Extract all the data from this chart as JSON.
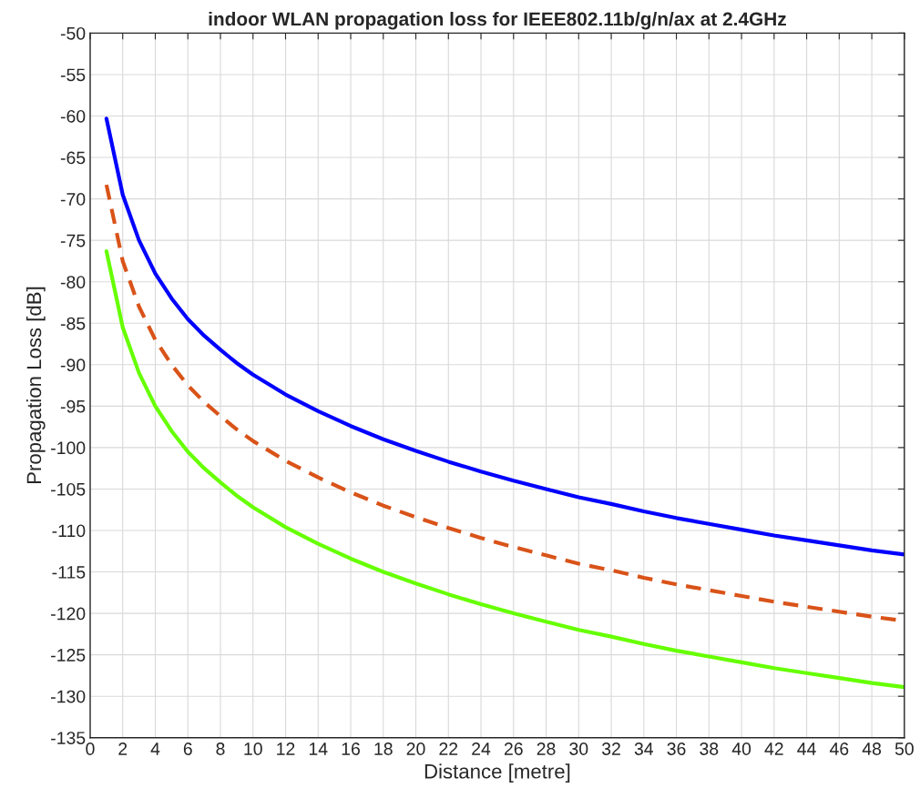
{
  "chart_data": {
    "type": "line",
    "title": "indoor WLAN propagation loss for IEEE802.11b/g/n/ax at 2.4GHz",
    "xlabel": "Distance [metre]",
    "ylabel": "Propagation Loss [dB]",
    "x": [
      1,
      2,
      3,
      4,
      5,
      6,
      7,
      8,
      9,
      10,
      12,
      14,
      16,
      18,
      20,
      22,
      24,
      26,
      28,
      30,
      32,
      34,
      36,
      38,
      40,
      42,
      44,
      46,
      48,
      50
    ],
    "series": [
      {
        "color": "#0000ff",
        "line_style": "solid",
        "values": [
          -60.3,
          -69.5,
          -75,
          -79,
          -82,
          -84.5,
          -86.5,
          -88.2,
          -89.8,
          -91.2,
          -93.6,
          -95.6,
          -97.4,
          -99,
          -100.4,
          -101.7,
          -102.9,
          -104,
          -105,
          -106,
          -106.8,
          -107.7,
          -108.5,
          -109.2,
          -109.9,
          -110.6,
          -111.2,
          -111.8,
          -112.4,
          -112.9
        ]
      },
      {
        "color": "#d95319",
        "line_style": "dashed",
        "values": [
          -68.3,
          -77.5,
          -83,
          -87,
          -90,
          -92.5,
          -94.5,
          -96.2,
          -97.8,
          -99.2,
          -101.6,
          -103.6,
          -105.4,
          -107,
          -108.4,
          -109.7,
          -110.9,
          -112,
          -113,
          -114,
          -114.8,
          -115.7,
          -116.5,
          -117.2,
          -117.9,
          -118.6,
          -119.2,
          -119.8,
          -120.4,
          -120.9
        ]
      },
      {
        "color": "#66ff00",
        "line_style": "solid",
        "values": [
          -76.3,
          -85.5,
          -91,
          -95,
          -98,
          -100.5,
          -102.5,
          -104.2,
          -105.8,
          -107.2,
          -109.6,
          -111.6,
          -113.4,
          -115,
          -116.4,
          -117.7,
          -118.9,
          -120,
          -121,
          -122,
          -122.8,
          -123.7,
          -124.5,
          -125.2,
          -125.9,
          -126.6,
          -127.2,
          -127.8,
          -128.4,
          -128.9
        ]
      }
    ],
    "xlim": [
      0,
      50
    ],
    "xticks": [
      0,
      2,
      4,
      6,
      8,
      10,
      12,
      14,
      16,
      18,
      20,
      22,
      24,
      26,
      28,
      30,
      32,
      34,
      36,
      38,
      40,
      42,
      44,
      46,
      48,
      50
    ],
    "ylim": [
      -135,
      -50
    ],
    "yticks": [
      -135,
      -130,
      -125,
      -120,
      -115,
      -110,
      -105,
      -100,
      -95,
      -90,
      -85,
      -80,
      -75,
      -70,
      -65,
      -60,
      -55,
      -50
    ],
    "grid": true
  }
}
